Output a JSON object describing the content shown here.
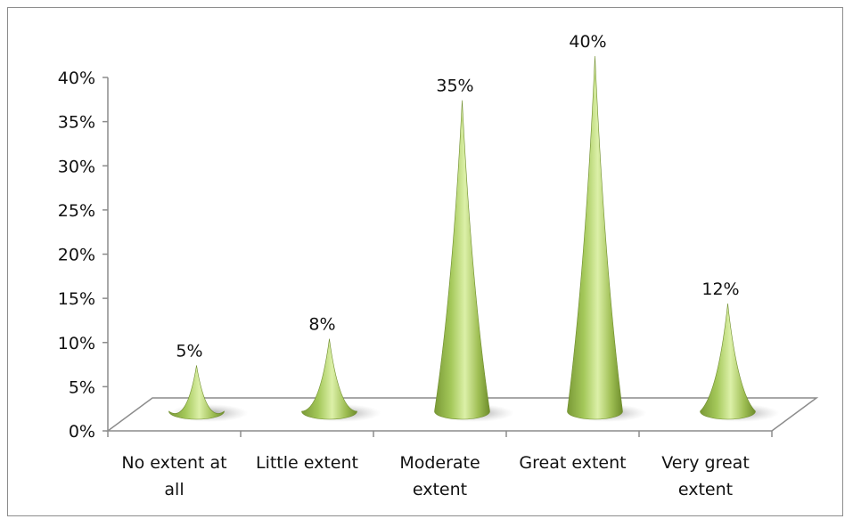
{
  "chart_data": {
    "type": "bar",
    "style": "3d-cone",
    "categories": [
      [
        "No extent at",
        "all"
      ],
      [
        "Little extent"
      ],
      [
        "Moderate",
        "extent"
      ],
      [
        "Great extent"
      ],
      [
        "Very great",
        "extent"
      ]
    ],
    "values": [
      5,
      8,
      35,
      40,
      12
    ],
    "data_labels": [
      "5%",
      "8%",
      "35%",
      "40%",
      "12%"
    ],
    "ylim": [
      0,
      40
    ],
    "yticks": [
      "0%",
      "5%",
      "10%",
      "15%",
      "20%",
      "25%",
      "30%",
      "35%",
      "40%"
    ],
    "title": "",
    "xlabel": "",
    "ylabel": "",
    "grid": false,
    "legend": "none",
    "colors": {
      "cone_dark": "#7a9a36",
      "cone_mid": "#a4c85a",
      "cone_light": "#dcf0a8",
      "axis": "#8c8c8c"
    }
  }
}
